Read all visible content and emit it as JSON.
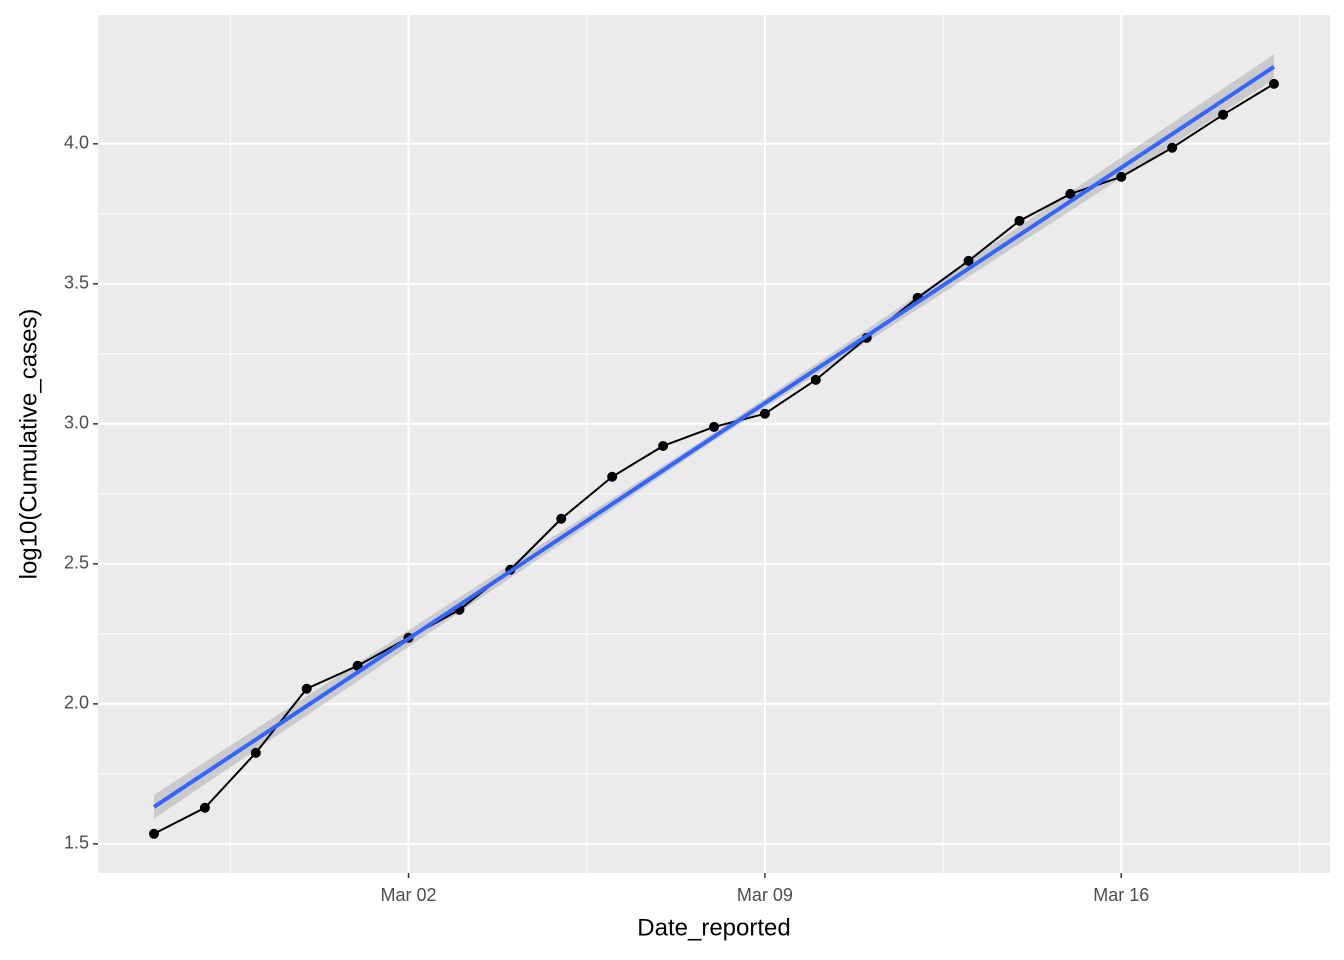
{
  "chart_data": {
    "type": "line",
    "x_label": "Date_reported",
    "y_label": "log10(Cumulative_cases)",
    "x": [
      "Feb 26",
      "Feb 27",
      "Feb 28",
      "Feb 29",
      "Mar 01",
      "Mar 02",
      "Mar 03",
      "Mar 04",
      "Mar 05",
      "Mar 06",
      "Mar 07",
      "Mar 08",
      "Mar 09",
      "Mar 10",
      "Mar 11",
      "Mar 12",
      "Mar 13",
      "Mar 14",
      "Mar 15",
      "Mar 16",
      "Mar 17",
      "Mar 18",
      "Mar 19"
    ],
    "series": [
      {
        "color": "#000000",
        "values": [
          1.536,
          1.629,
          1.825,
          2.054,
          2.136,
          2.236,
          2.336,
          2.479,
          2.661,
          2.811,
          2.921,
          2.989,
          3.036,
          3.157,
          3.307,
          3.45,
          3.582,
          3.725,
          3.821,
          3.882,
          3.986,
          4.104,
          4.214
        ]
      }
    ],
    "trend": {
      "x": [
        "Feb 26",
        "Mar 08",
        "Mar 19"
      ],
      "values": [
        1.632,
        2.954,
        4.275
      ],
      "lower": [
        1.59,
        2.94,
        4.23
      ],
      "upper": [
        1.675,
        2.968,
        4.32
      ],
      "color": "#3366ff",
      "band_color": "#999999"
    },
    "ylim": [
      1.396,
      4.46
    ],
    "yticks": [
      1.5,
      {
        "value": 2,
        "label": "2.0"
      },
      2.5,
      {
        "value": 3,
        "label": "3.0"
      },
      3.5,
      {
        "value": 4,
        "label": "4.0"
      }
    ],
    "xticks": [
      "Mar 02",
      "Mar 09",
      "Mar 16"
    ],
    "grid": true
  }
}
